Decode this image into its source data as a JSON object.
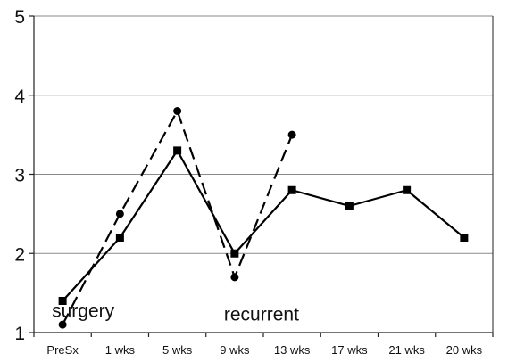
{
  "chart_data": {
    "type": "line",
    "categories": [
      "PreSx",
      "1 wks",
      "5 wks",
      "9 wks",
      "13 wks",
      "17 wks",
      "21 wks",
      "20 wks"
    ],
    "ylim": [
      1,
      5
    ],
    "yticks": [
      "1",
      "2",
      "3",
      "4",
      "5"
    ],
    "grid": "horizontal",
    "series": [
      {
        "marker": "square",
        "line": "solid",
        "values": [
          1.4,
          2.2,
          3.3,
          2.0,
          2.8,
          2.6,
          2.8,
          2.2
        ]
      },
      {
        "marker": "circle",
        "line": "dashed",
        "values": [
          1.1,
          2.5,
          3.8,
          1.7,
          3.5,
          null,
          null,
          null
        ]
      }
    ],
    "annotations": [
      {
        "text": "surgery",
        "category": "PreSx",
        "y": 1.2
      },
      {
        "text": "recurrent",
        "category": "9 wks",
        "y": 1.15
      }
    ],
    "title": "",
    "xlabel": "",
    "ylabel": ""
  }
}
